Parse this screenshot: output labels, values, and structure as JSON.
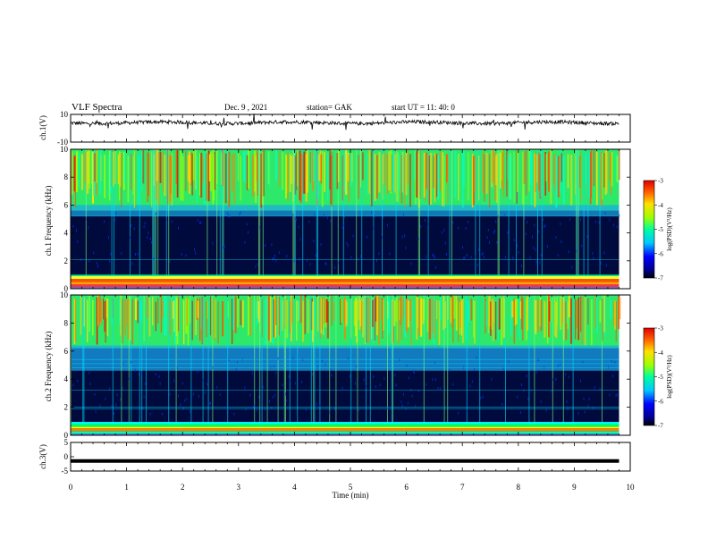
{
  "header": {
    "title": "VLF Spectra",
    "date": "Dec. 9 , 2021",
    "station": "station= GAK",
    "start": "start UT =  11: 40: 0"
  },
  "chart_data": [
    {
      "type": "line",
      "title": "",
      "ylabel": "ch.1(V)",
      "ylim": [
        -10,
        10
      ],
      "yticks": [
        "10",
        "-10"
      ],
      "xlim": [
        0,
        10
      ],
      "series": [
        {
          "baseline": 4,
          "x": [
            0,
            1,
            2,
            3,
            4,
            5,
            6,
            7,
            8,
            9,
            9.8
          ],
          "y": [
            4,
            4,
            4,
            4,
            4,
            4,
            4,
            4,
            4,
            4,
            4
          ]
        }
      ]
    },
    {
      "type": "heatmap",
      "ylabel": "ch.1 Frequency (kHz)",
      "yticks": [
        "0",
        "2",
        "4",
        "6",
        "8",
        "10"
      ],
      "ylim": [
        0,
        10
      ],
      "xlim": [
        0,
        10
      ],
      "colorbar": {
        "label": "log(PSD)(V²/Hz)",
        "ticks": [
          "-3",
          "-4",
          "-5",
          "-6",
          "-7"
        ],
        "range": [
          -7,
          -3
        ]
      }
    },
    {
      "type": "heatmap",
      "ylabel": "ch.2 Frequency (kHz)",
      "yticks": [
        "0",
        "2",
        "4",
        "6",
        "8",
        "10"
      ],
      "ylim": [
        0,
        10
      ],
      "xlim": [
        0,
        10
      ],
      "colorbar": {
        "label": "log(PSD)(V²/Hz)",
        "ticks": [
          "-3",
          "-4",
          "-5",
          "-6",
          "-7"
        ],
        "range": [
          -7,
          -3
        ]
      }
    },
    {
      "type": "line",
      "ylabel": "ch.3(V)",
      "ylim": [
        -5,
        5
      ],
      "yticks": [
        "5",
        "0",
        "-5"
      ],
      "xlim": [
        0,
        10
      ],
      "series": [
        {
          "x": [
            0,
            9.8
          ],
          "y": [
            -1.5,
            -1.5
          ]
        }
      ]
    }
  ],
  "xaxis": {
    "label": "Time (min)",
    "ticks": [
      "0",
      "1",
      "2",
      "3",
      "4",
      "5",
      "6",
      "7",
      "8",
      "9",
      "10"
    ]
  }
}
